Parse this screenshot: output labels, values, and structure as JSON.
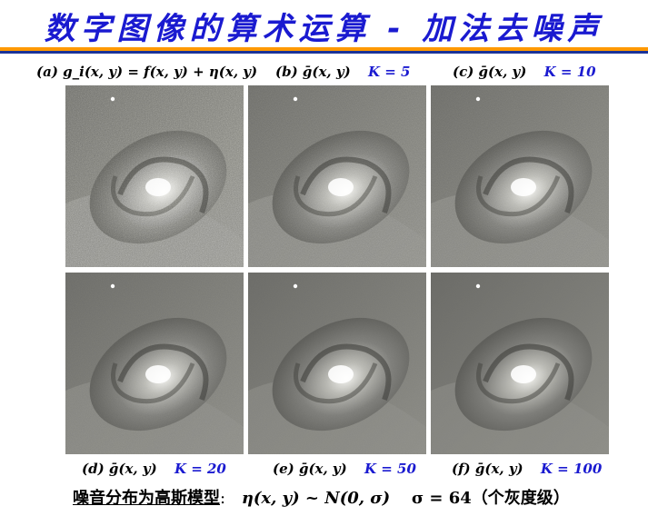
{
  "slide": {
    "title": "数字图像的算术运算 - 加法去噪声",
    "accent_orange": "#ff9900",
    "accent_blue": "#1a1ad0"
  },
  "panels": [
    {
      "caption": "(a) g_i(x, y) = f(x, y) + η(x, y)",
      "k_label": "",
      "noise": 0.85
    },
    {
      "caption": "(b) ḡ(x, y)",
      "k_label": "K = 5",
      "noise": 0.45
    },
    {
      "caption": "(c) ḡ(x, y)",
      "k_label": "K = 10",
      "noise": 0.35
    },
    {
      "caption": "(d) ḡ(x, y)",
      "k_label": "K = 20",
      "noise": 0.22
    },
    {
      "caption": "(e) ḡ(x, y)",
      "k_label": "K = 50",
      "noise": 0.12
    },
    {
      "caption": "(f) ḡ(x, y)",
      "k_label": "K = 100",
      "noise": 0.06
    }
  ],
  "footer": {
    "label": "噪音分布为高斯模型",
    "colon": ":",
    "equation": "η(x, y) ~ N(0, σ)",
    "sigma": "σ = 64（个灰度级）"
  }
}
